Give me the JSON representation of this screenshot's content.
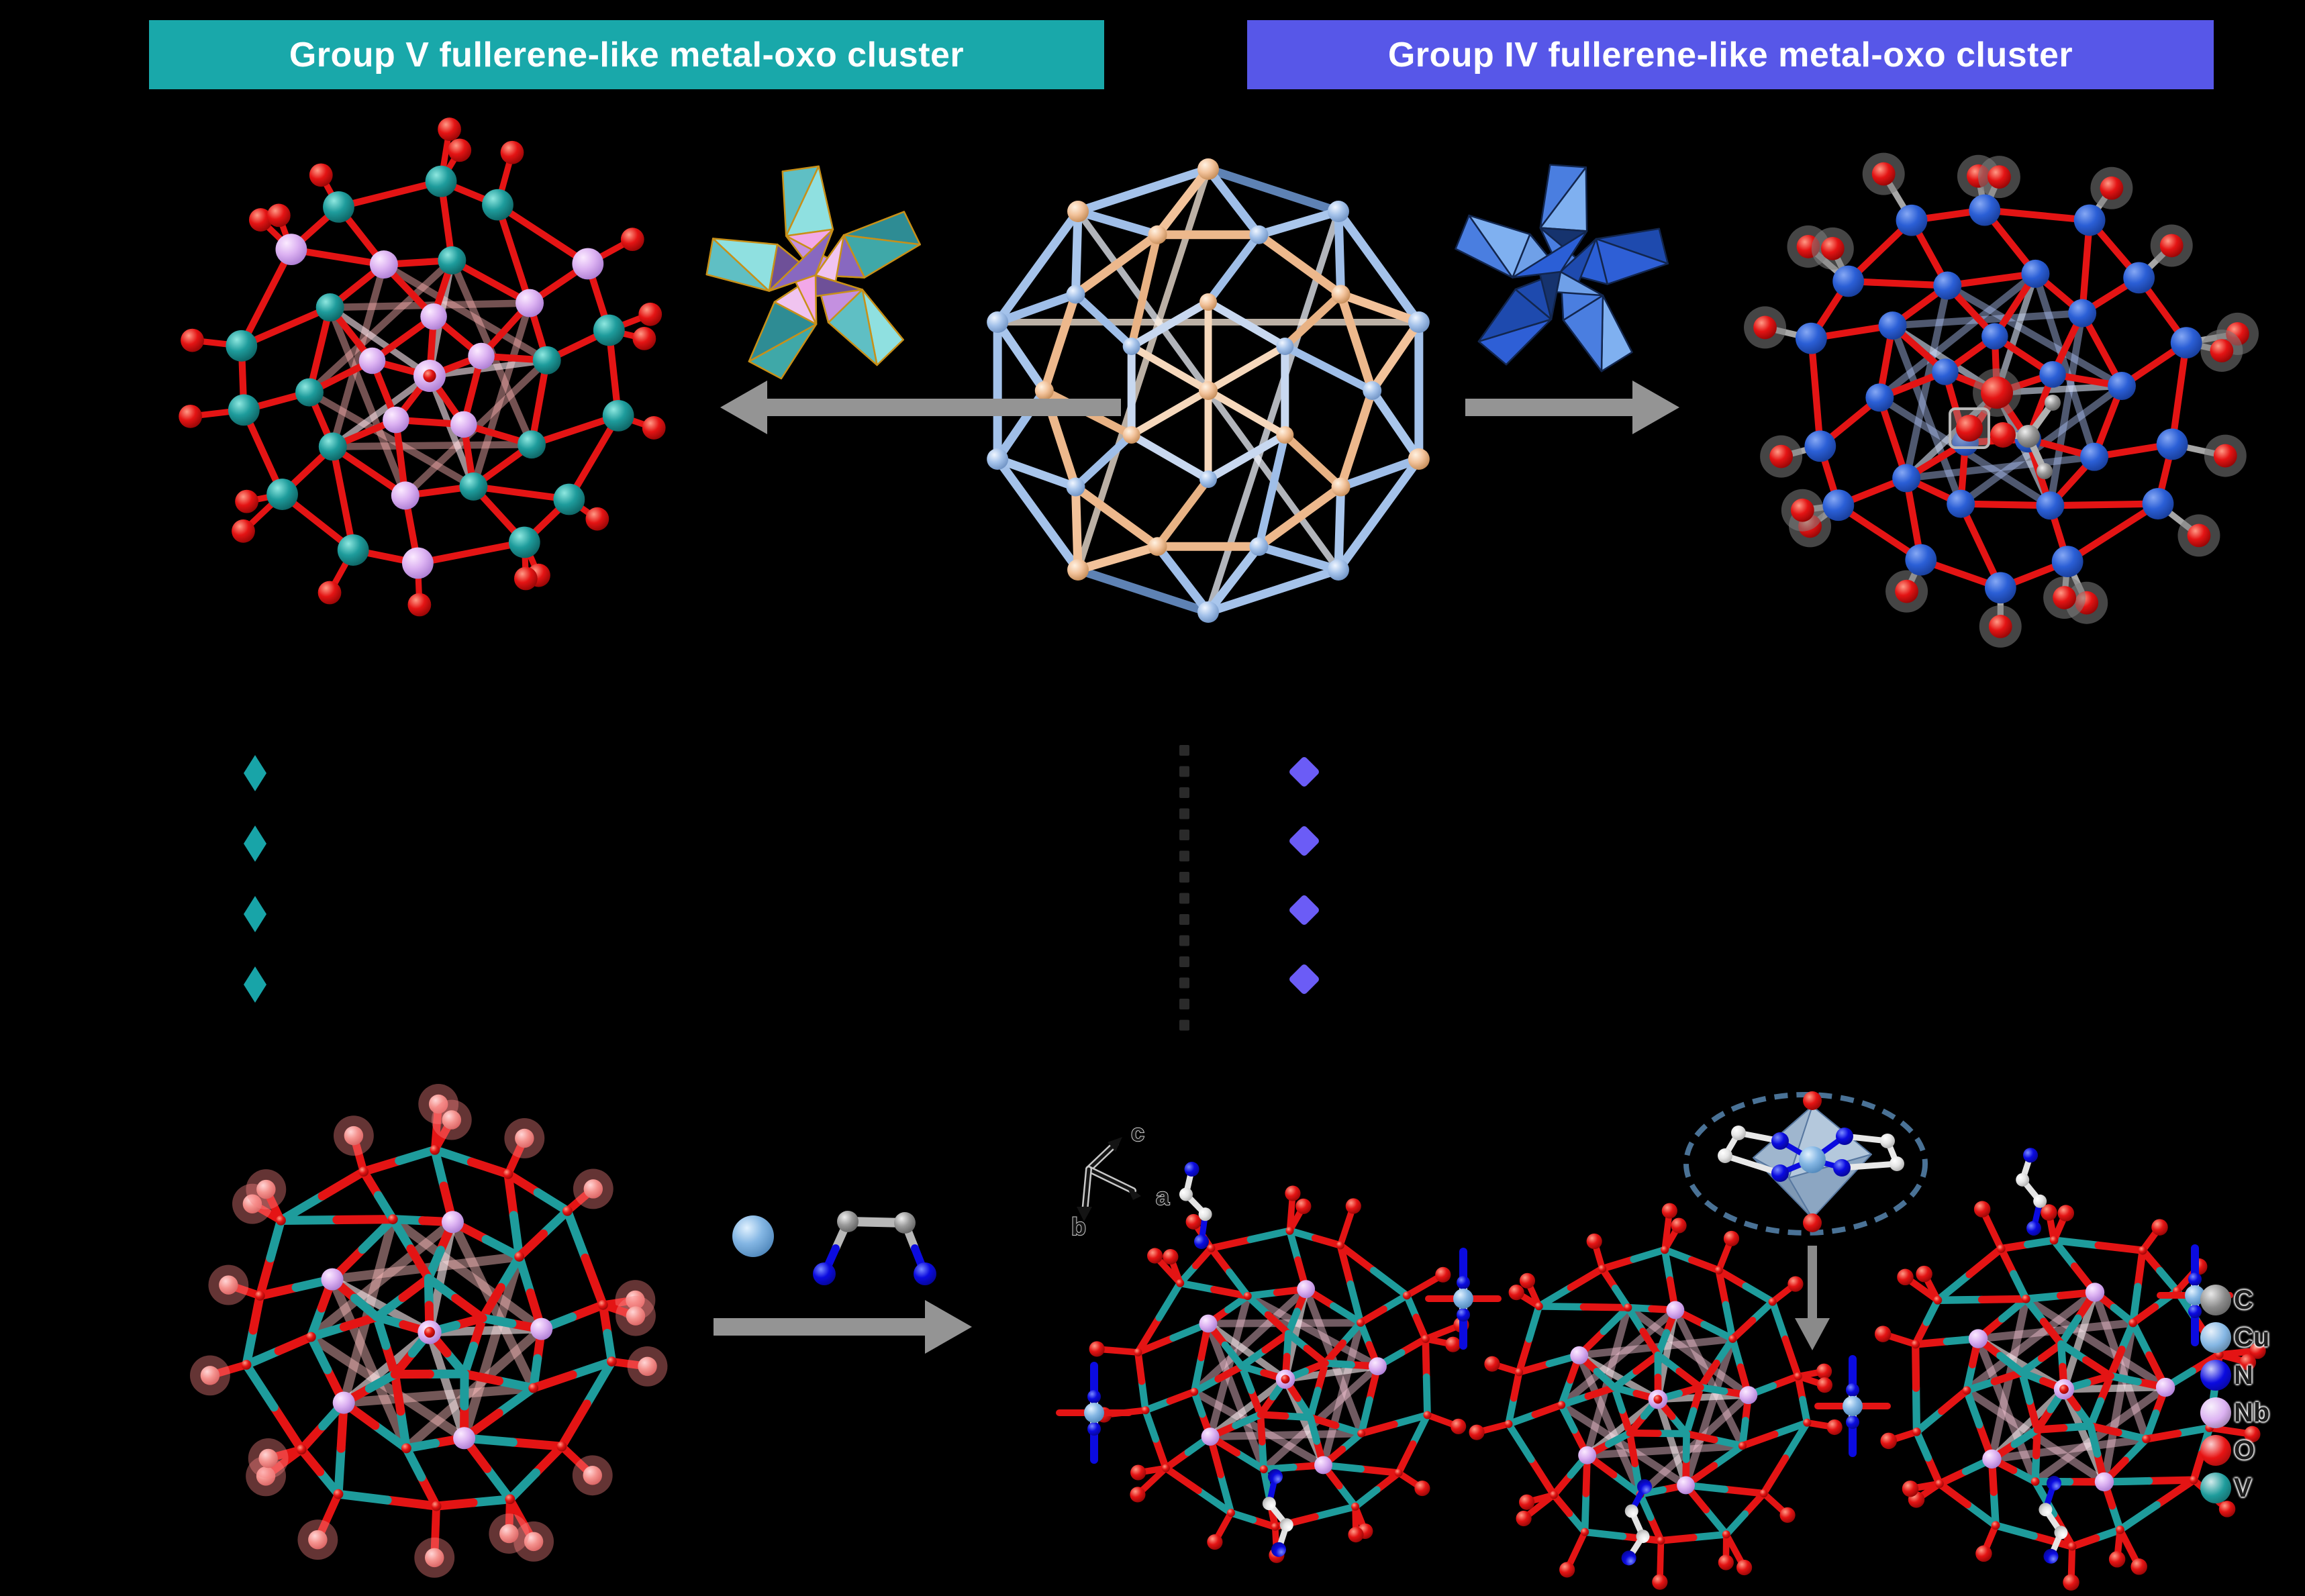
{
  "banners": {
    "left": {
      "label": "Group V fullerene-like metal-oxo cluster",
      "background": "#19A8AA",
      "text_color": "#FFFFFF"
    },
    "right": {
      "label": "Group IV fullerene-like metal-oxo cluster",
      "background": "#5757E8",
      "text_color": "#FFFFFF"
    }
  },
  "legend": {
    "items": [
      {
        "symbol": "C",
        "color": "#8A8A8A"
      },
      {
        "symbol": "Cu",
        "color": "#85B7E4"
      },
      {
        "symbol": "N",
        "color": "#0B0BE0"
      },
      {
        "symbol": "Nb",
        "color": "#DCB2F2"
      },
      {
        "symbol": "O",
        "color": "#E81414"
      },
      {
        "symbol": "V",
        "color": "#1E9C9C"
      }
    ]
  },
  "axis": {
    "labels": {
      "a": "a",
      "b": "b",
      "c": "c"
    }
  },
  "bullets": {
    "left": {
      "count": 4,
      "color": "#18A4A8"
    },
    "right": {
      "count": 4,
      "color": "#6B5CF6"
    }
  },
  "divider": {
    "count": 14,
    "color": "#2A2A2A"
  },
  "palette": {
    "oxygen_red": "#E41414",
    "vanadium_teal": "#1E9C9C",
    "niobium_lilac": "#DCB2F2",
    "group4_blue": "#2B5FD6",
    "copper_blue": "#85B7E4",
    "nitrogen_blue": "#0B0BE0",
    "carbon_gray": "#9A9A9A",
    "ico_blue": "#A4C2EA",
    "ico_orange": "#F2C29A",
    "arrow_gray": "#949494",
    "inset_dash": "#4A7296"
  }
}
